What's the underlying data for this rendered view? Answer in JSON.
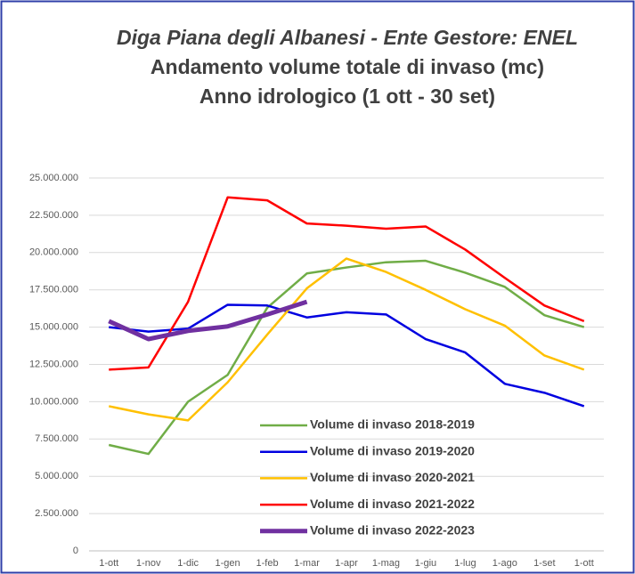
{
  "chart_data": {
    "type": "line",
    "title_lines": [
      "Diga Piana degli Albanesi - Ente Gestore: ENEL",
      "Andamento volume totale di invaso (mc)",
      "Anno idrologico (1 ott - 30 set)"
    ],
    "categories": [
      "1-ott",
      "1-nov",
      "1-dic",
      "1-gen",
      "1-feb",
      "1-mar",
      "1-apr",
      "1-mag",
      "1-giu",
      "1-lug",
      "1-ago",
      "1-set",
      "1-ott"
    ],
    "series": [
      {
        "name": "Volume di invaso 2018-2019",
        "color": "#70ad47",
        "width": 2.5,
        "values": [
          7100000,
          6500000,
          10000000,
          11800000,
          16300000,
          18600000,
          19000000,
          19350000,
          19450000,
          18650000,
          17700000,
          15800000,
          15000000
        ]
      },
      {
        "name": "Volume di invaso 2019-2020",
        "color": "#0000e0",
        "width": 2.5,
        "values": [
          15000000,
          14700000,
          14900000,
          16500000,
          16450000,
          15650000,
          16000000,
          15850000,
          14200000,
          13300000,
          11200000,
          10600000,
          9700000
        ]
      },
      {
        "name": "Volume di invaso 2020-2021",
        "color": "#ffc000",
        "width": 2.5,
        "values": [
          9700000,
          9150000,
          8750000,
          11300000,
          14500000,
          17600000,
          19600000,
          18700000,
          17500000,
          16200000,
          15100000,
          13100000,
          12150000
        ]
      },
      {
        "name": "Volume di invaso 2021-2022",
        "color": "#ff0000",
        "width": 2.5,
        "values": [
          12150000,
          12300000,
          16700000,
          23700000,
          23500000,
          21950000,
          21800000,
          21600000,
          21750000,
          20200000,
          18300000,
          16450000,
          15400000
        ]
      },
      {
        "name": "Volume di invaso 2022-2023",
        "color": "#7030a0",
        "width": 5,
        "values": [
          15400000,
          14200000,
          14750000,
          15050000,
          15850000,
          16700000,
          null,
          null,
          null,
          null,
          null,
          null,
          null
        ]
      }
    ],
    "ylim": [
      0,
      25000000
    ],
    "yticks": [
      0,
      {
        "value": 2500000,
        "label": "2.500.000"
      },
      {
        "value": 5000000,
        "label": "5.000.000"
      },
      {
        "value": 7500000,
        "label": "7.500.000"
      },
      {
        "value": 10000000,
        "label": "10.000.000"
      },
      {
        "value": 12500000,
        "label": "12.500.000"
      },
      {
        "value": 15000000,
        "label": "15.000.000"
      },
      {
        "value": 17500000,
        "label": "17.500.000"
      },
      {
        "value": 20000000,
        "label": "20.000.000"
      },
      {
        "value": 22500000,
        "label": "22.500.000"
      },
      {
        "value": 25000000,
        "label": "25.000.000"
      }
    ],
    "grid": true
  }
}
